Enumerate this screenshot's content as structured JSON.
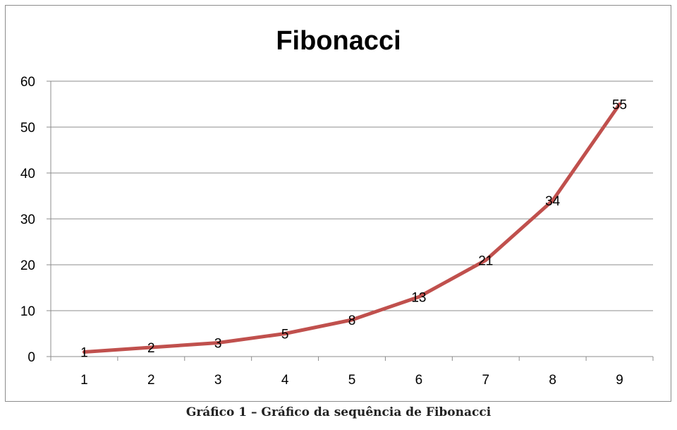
{
  "chart_data": {
    "type": "line",
    "title": "Fibonacci",
    "categories": [
      "1",
      "2",
      "3",
      "4",
      "5",
      "6",
      "7",
      "8",
      "9"
    ],
    "series": [
      {
        "values": [
          1,
          2,
          3,
          5,
          8,
          13,
          21,
          34,
          55
        ],
        "color": "#c0504d"
      }
    ],
    "data_labels": [
      "1",
      "2",
      "3",
      "5",
      "8",
      "13",
      "21",
      "34",
      "55"
    ],
    "ylim": [
      0,
      60
    ],
    "yticks": [
      0,
      10,
      20,
      30,
      40,
      50,
      60
    ],
    "grid": true,
    "legend": "none",
    "xlabel": "",
    "ylabel": ""
  },
  "caption": "Gráfico 1 – Gráfico da sequência de Fibonacci"
}
